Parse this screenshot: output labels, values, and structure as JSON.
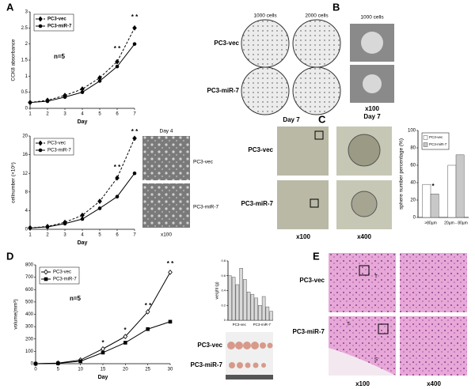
{
  "panel_labels": [
    "A",
    "B",
    "C",
    "D",
    "E"
  ],
  "image_labels": [
    "1000 cells",
    "2000 cells",
    "1000 cells",
    "PC3-vec",
    "PC3-miR-7",
    "Day 7",
    "x100",
    "Day 7",
    "Day 4",
    "PC3-vec",
    "PC3-miR-7",
    "x100",
    "PC3-vec",
    "PC3-miR-7",
    "x100",
    "x400",
    "PC3-vec",
    "PC3-miR-7",
    "PC3-vec",
    "PC3-miR-7",
    "x100",
    "x400",
    "T",
    "T",
    "S"
  ],
  "chart_data": [
    {
      "type": "line",
      "ylabel": "CCK8 absorbance",
      "xlabel": "Day",
      "x": [
        1,
        2,
        3,
        4,
        5,
        6,
        7
      ],
      "xlim": [
        1,
        7
      ],
      "xticks": [
        1,
        2,
        3,
        4,
        5,
        6,
        7
      ],
      "ylim": [
        0,
        3
      ],
      "yticks": [
        0,
        0.5,
        1,
        1.5,
        2,
        2.5,
        3
      ],
      "legend": "upper left",
      "series": [
        {
          "name": "PC3-vec",
          "color": "#000000",
          "line_style": "dashed",
          "marker": "diamond",
          "values": [
            0.18,
            0.25,
            0.4,
            0.6,
            0.95,
            1.45,
            2.5
          ]
        },
        {
          "name": "PC3-miR-7",
          "color": "#000000",
          "line_style": "solid",
          "marker": "circle",
          "values": [
            0.18,
            0.22,
            0.35,
            0.5,
            0.85,
            1.3,
            2.0
          ]
        }
      ],
      "annotations": [
        "n=5",
        "* *",
        "* *"
      ]
    },
    {
      "type": "line",
      "ylabel": "cellnumber (×10⁵)",
      "xlabel": "Day",
      "x": [
        1,
        2,
        3,
        4,
        5,
        6,
        7
      ],
      "xlim": [
        1,
        7
      ],
      "xticks": [
        1,
        2,
        3,
        4,
        5,
        6,
        7
      ],
      "ylim": [
        0,
        20
      ],
      "yticks": [
        0,
        4,
        8,
        12,
        16,
        20
      ],
      "legend": "upper left",
      "series": [
        {
          "name": "PC3-vec",
          "color": "#000000",
          "line_style": "dashed",
          "marker": "diamond",
          "values": [
            0.3,
            0.6,
            1.5,
            3,
            6,
            11,
            19.5
          ]
        },
        {
          "name": "PC3-miR-7",
          "color": "#000000",
          "line_style": "solid",
          "marker": "circle",
          "values": [
            0.3,
            0.5,
            1.2,
            2.2,
            4.5,
            7,
            12
          ]
        }
      ],
      "annotations": [
        "* *",
        "* *"
      ]
    },
    {
      "type": "bar",
      "ylabel": "sphere number percentage (%)",
      "categories": [
        ">80µm",
        "20µm - 80µm"
      ],
      "ylim": [
        0,
        100
      ],
      "yticks": [
        0,
        20,
        40,
        60,
        80,
        100
      ],
      "legend": "upper left",
      "series": [
        {
          "name": "PC3-vec",
          "color": "#ffffff",
          "values": [
            38,
            60
          ]
        },
        {
          "name": "PC3-miR-7",
          "color": "#c8c8c8",
          "values": [
            27,
            72
          ]
        }
      ],
      "annotations": [
        "*"
      ]
    },
    {
      "type": "line",
      "ylabel": "volume(mm³)",
      "xlabel": "Day",
      "x": [
        0,
        5,
        10,
        15,
        20,
        25,
        30
      ],
      "xlim": [
        0,
        30
      ],
      "xticks": [
        0,
        5,
        10,
        15,
        20,
        25,
        30
      ],
      "ylim": [
        0,
        800
      ],
      "yticks": [
        0,
        100,
        200,
        300,
        400,
        500,
        600,
        700,
        800
      ],
      "legend": "upper left",
      "series": [
        {
          "name": "PC3-vec",
          "color": "#000000",
          "line_style": "solid",
          "marker": "diamond_open",
          "values": [
            0,
            5,
            30,
            120,
            220,
            420,
            740
          ]
        },
        {
          "name": "PC3-miR-7",
          "color": "#000000",
          "line_style": "solid",
          "marker": "square",
          "values": [
            0,
            3,
            20,
            90,
            170,
            280,
            340
          ]
        }
      ],
      "annotations": [
        "n=5",
        "*",
        "*",
        "* *",
        "* *"
      ]
    },
    {
      "type": "bar",
      "ylabel": "weight (g)",
      "categories": [
        null,
        null,
        null,
        null,
        null,
        null,
        null,
        null,
        null,
        null,
        null,
        null
      ],
      "ylim": [
        0,
        0.8
      ],
      "yticks": [
        0,
        0.2,
        0.4,
        0.6,
        0.8
      ],
      "color": "#d9d9d9",
      "values": [
        0.6,
        0.58,
        0.48,
        0.7,
        0.55,
        0.38,
        0.35,
        0.3,
        0.2,
        0.32,
        0.18,
        0.12
      ],
      "annotations": [
        "PC3-vec",
        "PC3-miR-7"
      ]
    }
  ]
}
